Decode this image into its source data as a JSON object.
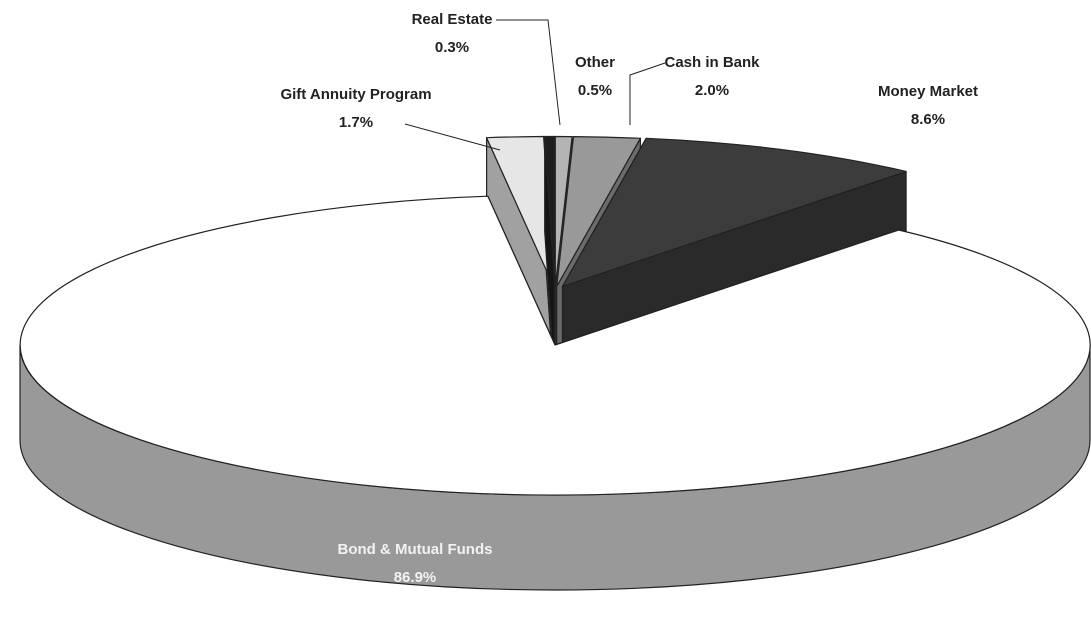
{
  "chart_data": {
    "type": "pie",
    "categories": [
      "Other",
      "Cash in Bank",
      "Money Market",
      "Bond & Mutual Funds",
      "Gift Annuity Program",
      "Real Estate"
    ],
    "values": [
      0.5,
      2.0,
      8.6,
      86.9,
      1.7,
      0.3
    ],
    "value_labels": [
      "0.5%",
      "2.0%",
      "8.6%",
      "86.9%",
      "1.7%",
      "0.3%"
    ],
    "colors": [
      "#b4b4b4",
      "#999999",
      "#3c3c3c",
      "#ffffff",
      "#e6e6e6",
      "#1e1e1e"
    ]
  }
}
